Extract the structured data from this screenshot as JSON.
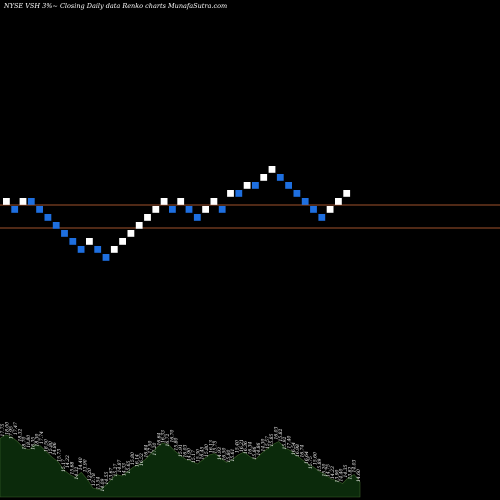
{
  "header": {
    "title": "NYSE VSH 3%~  Closing Daily data  Renko  charts MunafaSutra.com"
  },
  "colors": {
    "background": "#000000",
    "up_brick": "#ffffff",
    "down_brick": "#1e6fe0",
    "reference_line": "#a0522d",
    "volume_fill": "#0b2a0b",
    "volume_stroke": "#3a5f2a"
  },
  "chart_data": {
    "type": "renko",
    "title": "NYSE VSH 3%~  Closing Daily data  Renko  charts MunafaSutra.com",
    "brick_size_pct": 3,
    "brick_levels": [
      0,
      -1,
      0,
      0,
      -1,
      -2,
      -3,
      -4,
      -5,
      -6,
      -5,
      -6,
      -7,
      -6,
      -5,
      -4,
      -3,
      -2,
      -1,
      0,
      -1,
      0,
      -1,
      -2,
      -1,
      0,
      -1,
      1,
      1,
      2,
      2,
      3,
      4,
      3,
      2,
      1,
      0,
      -1,
      -2,
      -1,
      0,
      1
    ],
    "brick_colors": [
      "up",
      "down",
      "up",
      "down",
      "down",
      "down",
      "down",
      "down",
      "down",
      "down",
      "up",
      "down",
      "down",
      "up",
      "up",
      "up",
      "up",
      "up",
      "up",
      "up",
      "down",
      "up",
      "down",
      "down",
      "up",
      "up",
      "down",
      "up",
      "down",
      "up",
      "down",
      "up",
      "up",
      "down",
      "down",
      "down",
      "down",
      "down",
      "down",
      "up",
      "up",
      "up"
    ],
    "reference_lines": [
      "upper",
      "lower"
    ],
    "volume_labels": [
      "17.75",
      "18.00",
      "17.95",
      "17.47",
      "18.32",
      "18.70",
      "18.80",
      "18.35",
      "18.30",
      "17.74",
      "18.50",
      "15.80",
      "14.86",
      "15.73",
      "15.17",
      "14.22",
      "15.68",
      "14.32",
      "14.40",
      "13.90",
      "13.20",
      "13.78",
      "13.54",
      "14.09",
      "14.55",
      "13.67",
      "15.27",
      "14.87",
      "14.33",
      "15.65",
      "15.80",
      "16.14",
      "16.52",
      "16.84",
      "17.50",
      "17.20",
      "16.64",
      "16.33",
      "16.72",
      "16.70",
      "15.80",
      "15.91",
      "16.03",
      "14.90",
      "15.17",
      "15.30",
      "16.45",
      "15.80",
      "16.13",
      "15.75",
      "14.93",
      "16.50",
      "15.80",
      "15.61",
      "15.40",
      "16.21",
      "16.36",
      "16.34",
      "15.86",
      "14.86",
      "14.30",
      "15.57",
      "15.85",
      "16.03",
      "15.82",
      "15.92",
      "17.40",
      "16.54",
      "16.98",
      "16.74",
      "16.64",
      "15.75",
      "15.60",
      "15.89",
      "15.20",
      "14.75",
      "14.23",
      "13.90",
      "14.40",
      "14.35",
      "13.82",
      "14.03",
      "14.60"
    ],
    "volume_heights": [
      0.78,
      0.83,
      0.8,
      0.74,
      0.66,
      0.63,
      0.7,
      0.68,
      0.6,
      0.53,
      0.47,
      0.36,
      0.3,
      0.26,
      0.33,
      0.24,
      0.12,
      0.1,
      0.14,
      0.22,
      0.3,
      0.28,
      0.34,
      0.4,
      0.44,
      0.5,
      0.58,
      0.66,
      0.72,
      0.7,
      0.62,
      0.56,
      0.5,
      0.48,
      0.44,
      0.5,
      0.56,
      0.58,
      0.52,
      0.46,
      0.5,
      0.56,
      0.6,
      0.54,
      0.5,
      0.58,
      0.64,
      0.7,
      0.74,
      0.66,
      0.62,
      0.56,
      0.5,
      0.44,
      0.4,
      0.34,
      0.3,
      0.24,
      0.22,
      0.18,
      0.26,
      0.3,
      0.2
    ]
  }
}
